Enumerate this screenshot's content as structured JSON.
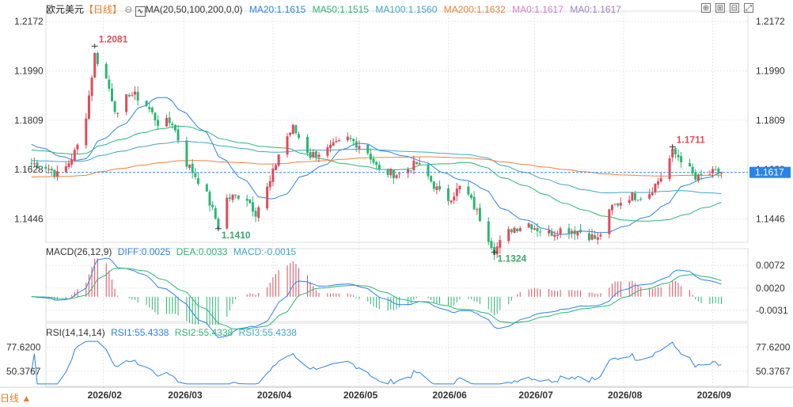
{
  "header": {
    "symbol": "欧元美元",
    "period": "【日线】",
    "ma_title": "MA(20,50,100,200,0,0)",
    "ma_values": [
      {
        "label": "MA20:1.1615",
        "color": "#2a83e8"
      },
      {
        "label": "MA50:1.1515",
        "color": "#2bb673"
      },
      {
        "label": "MA100:1.1560",
        "color": "#3fa7c4"
      },
      {
        "label": "MA200:1.1632",
        "color": "#f0813a"
      },
      {
        "label": "MA0:1.1617",
        "color": "#d77ad8"
      },
      {
        "label": "MA0:1.1617",
        "color": "#9b7fd6"
      }
    ]
  },
  "main_axis": {
    "ticks": [
      "1.2172",
      "1.1990",
      "1.1809",
      "1.1628",
      "1.1446"
    ],
    "last_price": "1.1617",
    "annotations": [
      {
        "text": "1.2081",
        "color": "#e04b5a"
      },
      {
        "text": "1.1410",
        "color": "#3aa86a"
      },
      {
        "text": "1.1324",
        "color": "#3aa86a"
      },
      {
        "text": "1.1711",
        "color": "#e04b5a"
      }
    ]
  },
  "macd": {
    "title": "MACD(26,12,9)",
    "diff": "DIFF:0.0025",
    "dea": "DEA:0.0033",
    "macd": "MACD:-0.0015",
    "ticks": [
      "0.0072",
      "0.0020",
      "-0.0031"
    ]
  },
  "rsi": {
    "title": "RSI(14,14,14)",
    "rsi1": "RSI1:55.4338",
    "rsi2": "RSI2:55.4338",
    "rsi3": "RSI3:55.4338",
    "ticks": [
      "77.6200",
      "50.3767"
    ]
  },
  "x_labels": [
    "2026/02",
    "2026/03",
    "2026/04",
    "2026/05",
    "2026/06",
    "2026/07",
    "2026/08",
    "2026/09"
  ],
  "footer_label": "日线 ▲",
  "colors": {
    "up": "#e04b5a",
    "down": "#2bb673",
    "grid": "#e6e6e6",
    "axis_text": "#333333"
  },
  "chart_data": [
    {
      "type": "candlestick",
      "title": "欧元美元 日线",
      "ylim": [
        1.136,
        1.221
      ],
      "y_ticks": [
        1.2172,
        1.199,
        1.1809,
        1.1628,
        1.1446
      ],
      "x_range": [
        "2026/01",
        "2026/09"
      ],
      "close_path": [
        [
          "2026-01-07",
          1.165
        ],
        [
          "2026-01-12",
          1.164
        ],
        [
          "2026-01-17",
          1.16
        ],
        [
          "2026-01-22",
          1.169
        ],
        [
          "2026-01-25",
          1.176
        ],
        [
          "2026-01-27",
          1.19
        ],
        [
          "2026-01-29",
          1.205
        ],
        [
          "2026-02-02",
          1.196
        ],
        [
          "2026-02-06",
          1.182
        ],
        [
          "2026-02-10",
          1.191
        ],
        [
          "2026-02-15",
          1.188
        ],
        [
          "2026-02-20",
          1.18
        ],
        [
          "2026-02-25",
          1.18
        ],
        [
          "2026-03-02",
          1.165
        ],
        [
          "2026-03-08",
          1.156
        ],
        [
          "2026-03-13",
          1.142
        ],
        [
          "2026-03-16",
          1.152
        ],
        [
          "2026-03-22",
          1.154
        ],
        [
          "2026-03-26",
          1.147
        ],
        [
          "2026-03-31",
          1.158
        ],
        [
          "2026-04-04",
          1.172
        ],
        [
          "2026-04-08",
          1.178
        ],
        [
          "2026-04-14",
          1.168
        ],
        [
          "2026-04-20",
          1.17
        ],
        [
          "2026-04-27",
          1.174
        ],
        [
          "2026-05-03",
          1.171
        ],
        [
          "2026-05-08",
          1.162
        ],
        [
          "2026-05-15",
          1.161
        ],
        [
          "2026-05-21",
          1.165
        ],
        [
          "2026-05-25",
          1.16
        ],
        [
          "2026-05-31",
          1.151
        ],
        [
          "2026-06-06",
          1.157
        ],
        [
          "2026-06-12",
          1.145
        ],
        [
          "2026-06-17",
          1.133
        ],
        [
          "2026-06-23",
          1.141
        ],
        [
          "2026-06-29",
          1.143
        ],
        [
          "2026-07-05",
          1.139
        ],
        [
          "2026-07-11",
          1.141
        ],
        [
          "2026-07-17",
          1.14
        ],
        [
          "2026-07-23",
          1.137
        ],
        [
          "2026-07-28",
          1.149
        ],
        [
          "2026-08-03",
          1.153
        ],
        [
          "2026-08-09",
          1.153
        ],
        [
          "2026-08-14",
          1.16
        ],
        [
          "2026-08-18",
          1.169
        ],
        [
          "2026-08-22",
          1.166
        ],
        [
          "2026-08-26",
          1.159
        ],
        [
          "2026-08-30",
          1.161
        ],
        [
          "2026-09-04",
          1.1617
        ]
      ],
      "highs_lows": [
        {
          "label": "1.2081",
          "date": "2026-01-29",
          "value": 1.2081
        },
        {
          "label": "1.1410",
          "date": "2026-03-13",
          "value": 1.141
        },
        {
          "label": "1.1324",
          "date": "2026-06-17",
          "value": 1.1324
        },
        {
          "label": "1.1711",
          "date": "2026-08-18",
          "value": 1.1711
        }
      ],
      "series": [
        {
          "name": "MA20",
          "last": 1.1615
        },
        {
          "name": "MA50",
          "last": 1.1515
        },
        {
          "name": "MA100",
          "last": 1.156
        },
        {
          "name": "MA200",
          "last": 1.1632
        }
      ]
    },
    {
      "type": "bar",
      "title": "MACD(26,12,9)",
      "y_ticks": [
        0.0072,
        0.002,
        -0.0031
      ],
      "series": [
        {
          "name": "DIFF",
          "last": 0.0025
        },
        {
          "name": "DEA",
          "last": 0.0033
        },
        {
          "name": "MACD",
          "last": -0.0015
        }
      ]
    },
    {
      "type": "line",
      "title": "RSI(14,14,14)",
      "y_ticks": [
        77.62,
        50.3767
      ],
      "series": [
        {
          "name": "RSI1",
          "last": 55.4338
        },
        {
          "name": "RSI2",
          "last": 55.4338
        },
        {
          "name": "RSI3",
          "last": 55.4338
        }
      ]
    }
  ]
}
